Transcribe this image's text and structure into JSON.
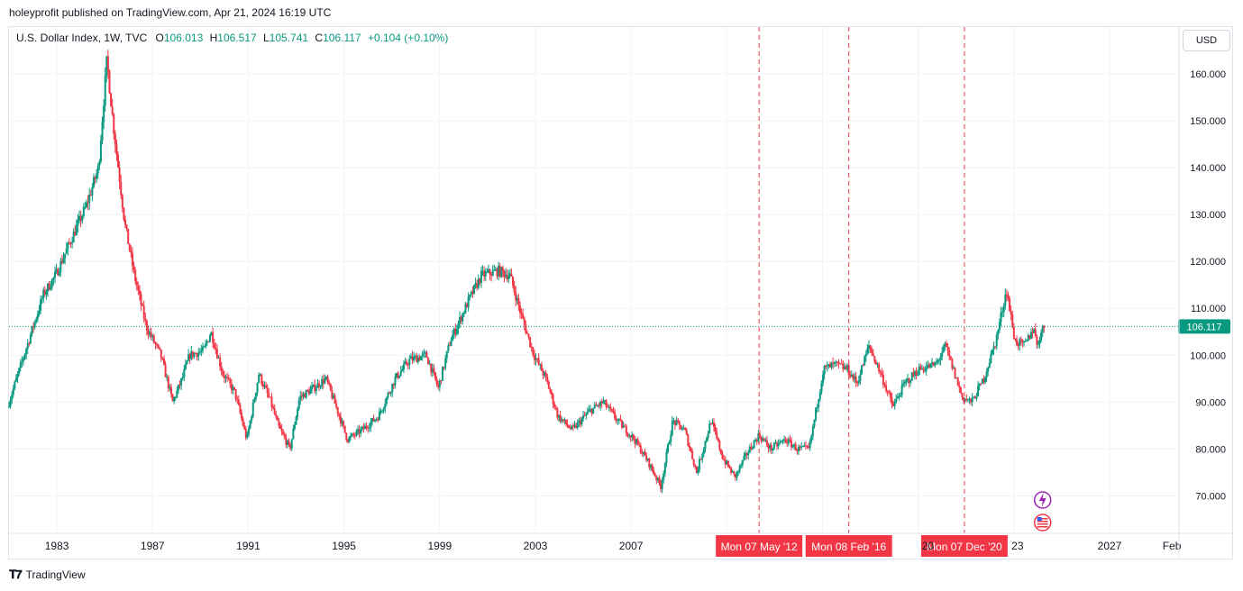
{
  "publisher_line": "holeyprofit published on TradingView.com, Apr 21, 2024 16:19 UTC",
  "legend": {
    "symbol": "U.S. Dollar Index, 1W, TVC",
    "open_label": "O",
    "open": "106.013",
    "high_label": "H",
    "high": "106.517",
    "low_label": "L",
    "low": "105.741",
    "close_label": "C",
    "close": "106.117",
    "change": "+0.104 (+0.10%)"
  },
  "currency_button": "USD",
  "footer": {
    "brand": "TradingView"
  },
  "colors": {
    "up": "#089981",
    "down": "#f23645",
    "marker": "#f23645",
    "grid": "#f0f3fa"
  },
  "chart_data": {
    "type": "candlestick",
    "title": "U.S. Dollar Index, 1W, TVC",
    "y_range": [
      62,
      170
    ],
    "y_ticks": [
      70,
      80,
      90,
      100,
      110,
      120,
      130,
      140,
      150,
      160
    ],
    "y_tick_labels": [
      "70.000",
      "80.000",
      "90.000",
      "100.000",
      "110.000",
      "120.000",
      "130.000",
      "140.000",
      "150.000",
      "160.000"
    ],
    "x_range": [
      1981.0,
      2029.9
    ],
    "x_ticks": [
      1983,
      1987,
      1991,
      1995,
      1999,
      2003,
      2007,
      2027
    ],
    "x_tick_labels": [
      "1983",
      "1987",
      "1991",
      "1995",
      "1999",
      "2003",
      "2007",
      "2027"
    ],
    "extra_x_labels": [
      {
        "x": 2019.4,
        "text": "20"
      },
      {
        "x": 2023.15,
        "text": "23"
      },
      {
        "x": 2029.6,
        "text": "Feb"
      }
    ],
    "last_price": 106.117,
    "last_price_label": "106.117",
    "vertical_markers": [
      {
        "x": 2012.35,
        "label": "Mon 07 May '12"
      },
      {
        "x": 2016.1,
        "label": "Mon 08 Feb '16"
      },
      {
        "x": 2020.93,
        "label": "Mon 07 Dec '20"
      }
    ],
    "anchors": [
      [
        1981.0,
        89
      ],
      [
        1981.5,
        97
      ],
      [
        1982.5,
        113
      ],
      [
        1983.0,
        117
      ],
      [
        1983.6,
        124
      ],
      [
        1984.3,
        132
      ],
      [
        1984.8,
        140
      ],
      [
        1985.15,
        163
      ],
      [
        1985.4,
        150
      ],
      [
        1985.9,
        128
      ],
      [
        1986.3,
        117
      ],
      [
        1986.8,
        106
      ],
      [
        1987.4,
        100
      ],
      [
        1987.9,
        90
      ],
      [
        1988.3,
        95
      ],
      [
        1988.6,
        100
      ],
      [
        1989.2,
        101
      ],
      [
        1989.5,
        105
      ],
      [
        1990.0,
        96
      ],
      [
        1990.5,
        92
      ],
      [
        1991.0,
        82
      ],
      [
        1991.5,
        96
      ],
      [
        1992.0,
        90
      ],
      [
        1992.3,
        85
      ],
      [
        1992.8,
        80
      ],
      [
        1993.2,
        91
      ],
      [
        1993.8,
        93
      ],
      [
        1994.3,
        95
      ],
      [
        1994.8,
        88
      ],
      [
        1995.2,
        82
      ],
      [
        1995.8,
        84
      ],
      [
        1996.5,
        87
      ],
      [
        1997.2,
        95
      ],
      [
        1997.8,
        99
      ],
      [
        1998.5,
        100
      ],
      [
        1999.0,
        93
      ],
      [
        1999.5,
        103
      ],
      [
        2000.3,
        112
      ],
      [
        2000.8,
        117
      ],
      [
        2001.5,
        118
      ],
      [
        2002.0,
        117
      ],
      [
        2002.5,
        108
      ],
      [
        2003.0,
        100
      ],
      [
        2003.5,
        95
      ],
      [
        2004.0,
        87
      ],
      [
        2004.6,
        84
      ],
      [
        2005.3,
        88
      ],
      [
        2005.9,
        90
      ],
      [
        2006.5,
        86
      ],
      [
        2007.2,
        82
      ],
      [
        2007.8,
        77
      ],
      [
        2008.3,
        72
      ],
      [
        2008.8,
        86
      ],
      [
        2009.3,
        84
      ],
      [
        2009.8,
        75
      ],
      [
        2010.4,
        86
      ],
      [
        2010.9,
        78
      ],
      [
        2011.4,
        74
      ],
      [
        2011.9,
        79
      ],
      [
        2012.4,
        83
      ],
      [
        2012.9,
        80
      ],
      [
        2013.5,
        82
      ],
      [
        2014.0,
        80
      ],
      [
        2014.5,
        80
      ],
      [
        2015.1,
        97
      ],
      [
        2015.6,
        98
      ],
      [
        2016.1,
        97
      ],
      [
        2016.5,
        94
      ],
      [
        2017.0,
        102
      ],
      [
        2017.5,
        96
      ],
      [
        2018.0,
        89
      ],
      [
        2018.5,
        94
      ],
      [
        2019.1,
        97
      ],
      [
        2019.8,
        98
      ],
      [
        2020.2,
        102
      ],
      [
        2020.9,
        91
      ],
      [
        2021.3,
        90
      ],
      [
        2021.8,
        95
      ],
      [
        2022.3,
        103
      ],
      [
        2022.75,
        114
      ],
      [
        2023.1,
        103
      ],
      [
        2023.5,
        102
      ],
      [
        2023.9,
        106
      ],
      [
        2024.0,
        102
      ],
      [
        2024.3,
        106.1
      ]
    ]
  }
}
